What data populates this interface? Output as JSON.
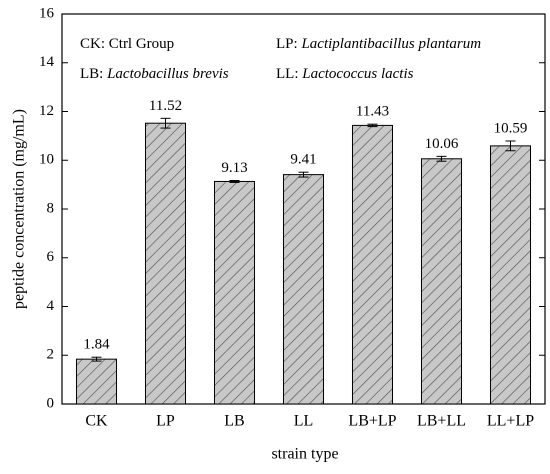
{
  "chart_data": {
    "type": "bar",
    "categories": [
      "CK",
      "LP",
      "LB",
      "LL",
      "LB+LP",
      "LB+LL",
      "LL+LP"
    ],
    "values": [
      1.84,
      11.52,
      9.13,
      9.41,
      11.43,
      10.06,
      10.59
    ],
    "errors": [
      0.08,
      0.2,
      0.04,
      0.1,
      0.05,
      0.1,
      0.2
    ],
    "color": "#c8c8c8",
    "xlabel": "strain type",
    "ylabel": "peptide concentration (mg/mL)",
    "ylim": [
      0,
      16
    ],
    "yticks": [
      0,
      2,
      4,
      6,
      8,
      10,
      12,
      14,
      16
    ],
    "annotations": [
      {
        "abbr": "CK:",
        "text": "Ctrl Group",
        "italic": false
      },
      {
        "abbr": "LP:",
        "text": "Lactiplantibacillus plantarum",
        "italic": true
      },
      {
        "abbr": "LB:",
        "text": "Lactobacillus brevis",
        "italic": true
      },
      {
        "abbr": "LL:",
        "text": "Lactococcus lactis",
        "italic": true
      }
    ]
  }
}
